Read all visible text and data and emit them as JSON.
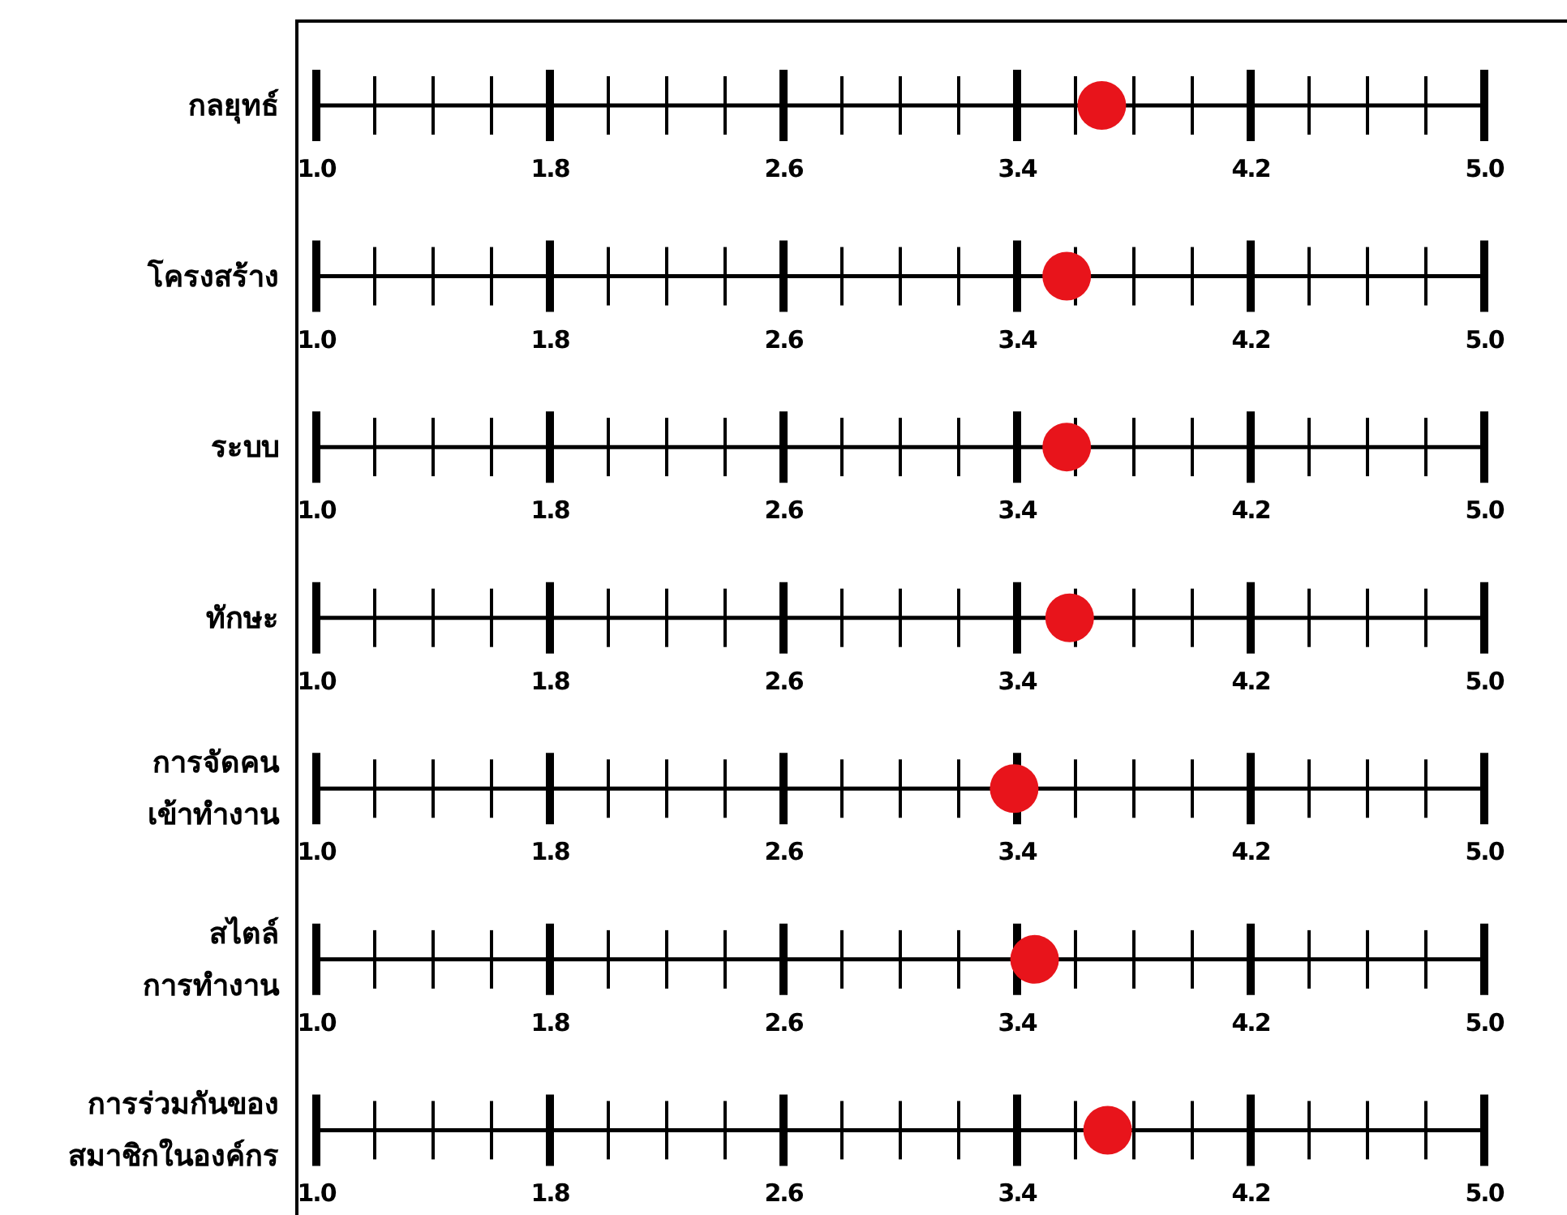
{
  "chart_data": [
    {
      "type": "scatter",
      "orientation": "horizontal",
      "marker": "circle",
      "categories": [
        "กลยุทธ์"
      ],
      "series": [
        {
          "color": "#e8141b",
          "values": [
            3.69
          ]
        }
      ],
      "xlim": [
        1.0,
        5.0
      ],
      "xticks": [
        {
          "value": 1.0,
          "label": "1.0"
        },
        {
          "value": 1.8,
          "label": "1.8"
        },
        {
          "value": 2.6,
          "label": "2.6"
        },
        {
          "value": 3.4,
          "label": "3.4"
        },
        {
          "value": 4.2,
          "label": "4.2"
        },
        {
          "value": 5.0,
          "label": "5.0"
        }
      ]
    },
    {
      "type": "scatter",
      "orientation": "horizontal",
      "marker": "circle",
      "categories": [
        "โครงสร้าง"
      ],
      "series": [
        {
          "color": "#e8141b",
          "values": [
            3.57
          ]
        }
      ],
      "xlim": [
        1.0,
        5.0
      ],
      "xticks": [
        {
          "value": 1.0,
          "label": "1.0"
        },
        {
          "value": 1.8,
          "label": "1.8"
        },
        {
          "value": 2.6,
          "label": "2.6"
        },
        {
          "value": 3.4,
          "label": "3.4"
        },
        {
          "value": 4.2,
          "label": "4.2"
        },
        {
          "value": 5.0,
          "label": "5.0"
        }
      ]
    },
    {
      "type": "scatter",
      "orientation": "horizontal",
      "marker": "circle",
      "categories": [
        "ระบบ"
      ],
      "series": [
        {
          "color": "#e8141b",
          "values": [
            3.57
          ]
        }
      ],
      "xlim": [
        1.0,
        5.0
      ],
      "xticks": [
        {
          "value": 1.0,
          "label": "1.0"
        },
        {
          "value": 1.8,
          "label": "1.8"
        },
        {
          "value": 2.6,
          "label": "2.6"
        },
        {
          "value": 3.4,
          "label": "3.4"
        },
        {
          "value": 4.2,
          "label": "4.2"
        },
        {
          "value": 5.0,
          "label": "5.0"
        }
      ]
    },
    {
      "type": "scatter",
      "orientation": "horizontal",
      "marker": "circle",
      "categories": [
        "ทักษะ"
      ],
      "series": [
        {
          "color": "#e8141b",
          "values": [
            3.58
          ]
        }
      ],
      "xlim": [
        1.0,
        5.0
      ],
      "xticks": [
        {
          "value": 1.0,
          "label": "1.0"
        },
        {
          "value": 1.8,
          "label": "1.8"
        },
        {
          "value": 2.6,
          "label": "2.6"
        },
        {
          "value": 3.4,
          "label": "3.4"
        },
        {
          "value": 4.2,
          "label": "4.2"
        },
        {
          "value": 5.0,
          "label": "5.0"
        }
      ]
    },
    {
      "type": "scatter",
      "orientation": "horizontal",
      "marker": "circle",
      "categories": [
        "การจัดคน\nเข้าทำงาน"
      ],
      "series": [
        {
          "color": "#e8141b",
          "values": [
            3.39
          ]
        }
      ],
      "xlim": [
        1.0,
        5.0
      ],
      "xticks": [
        {
          "value": 1.0,
          "label": "1.0"
        },
        {
          "value": 1.8,
          "label": "1.8"
        },
        {
          "value": 2.6,
          "label": "2.6"
        },
        {
          "value": 3.4,
          "label": "3.4"
        },
        {
          "value": 4.2,
          "label": "4.2"
        },
        {
          "value": 5.0,
          "label": "5.0"
        }
      ]
    },
    {
      "type": "scatter",
      "orientation": "horizontal",
      "marker": "circle",
      "categories": [
        "สไตล์\nการทำงาน"
      ],
      "series": [
        {
          "color": "#e8141b",
          "values": [
            3.46
          ]
        }
      ],
      "xlim": [
        1.0,
        5.0
      ],
      "xticks": [
        {
          "value": 1.0,
          "label": "1.0"
        },
        {
          "value": 1.8,
          "label": "1.8"
        },
        {
          "value": 2.6,
          "label": "2.6"
        },
        {
          "value": 3.4,
          "label": "3.4"
        },
        {
          "value": 4.2,
          "label": "4.2"
        },
        {
          "value": 5.0,
          "label": "5.0"
        }
      ]
    },
    {
      "type": "scatter",
      "orientation": "horizontal",
      "marker": "circle",
      "categories": [
        "การร่วมกันของ\nสมาชิกในองค์กร"
      ],
      "series": [
        {
          "color": "#e8141b",
          "values": [
            3.71
          ]
        }
      ],
      "xlim": [
        1.0,
        5.0
      ],
      "xticks": [
        {
          "value": 1.0,
          "label": "1.0"
        },
        {
          "value": 1.8,
          "label": "1.8"
        },
        {
          "value": 2.6,
          "label": "2.6"
        },
        {
          "value": 3.4,
          "label": "3.4"
        },
        {
          "value": 4.2,
          "label": "4.2"
        },
        {
          "value": 5.0,
          "label": "5.0"
        }
      ]
    }
  ]
}
